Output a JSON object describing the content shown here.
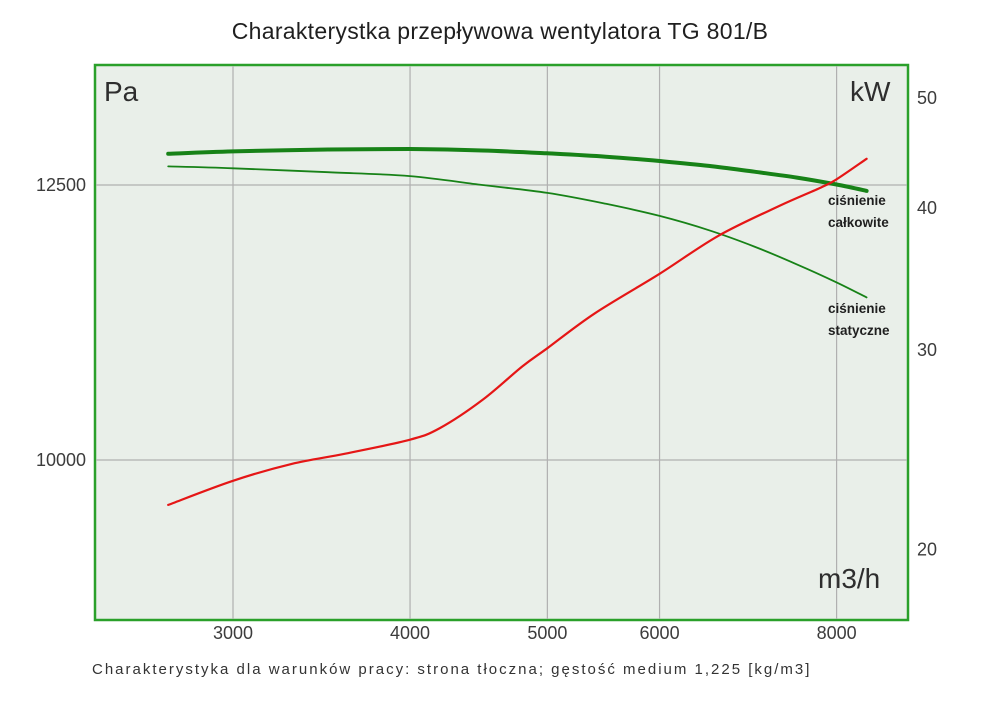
{
  "title": "Charakterystka przepływowa wentylatora TG 801/B",
  "caption": "Charakterystyka dla warunków pracy: strona tłoczna; gęstość medium 1,225 [kg/m3]",
  "axes": {
    "left_unit": "Pa",
    "right_unit": "kW",
    "x_unit": "m3/h",
    "left_ticks": [
      12500,
      10000
    ],
    "right_ticks": [
      50,
      40,
      30,
      20
    ],
    "x_ticks": [
      3000,
      4000,
      5000,
      6000,
      8000
    ]
  },
  "annotations": {
    "total_pressure": "ciśnienie\ncałkowite",
    "static_pressure": "ciśnienie\nstatyczne"
  },
  "colors": {
    "plot_bg": "#e9efe9",
    "plot_border": "#2aa02a",
    "grid": "#b0b0b0",
    "green_curve": "#178217",
    "red_curve": "#e51616"
  },
  "chart_data": {
    "type": "line",
    "title": "Charakterystka przepływowa wentylatora TG 801/B",
    "xlabel": "m3/h",
    "ylabel_left": "Pa",
    "ylabel_right": "kW",
    "x_scale": "log",
    "y_scale": "log",
    "xlim": [
      2400,
      9000
    ],
    "ylim_left": [
      8800,
      13800
    ],
    "ylim_right": [
      17.3,
      53.5
    ],
    "x_gridlines": [
      3000,
      4000,
      5000,
      6000,
      8000
    ],
    "y_gridlines_left": [
      12500,
      10000
    ],
    "legend_position": "inline-right",
    "series": [
      {
        "id": "cisnienie-calkowite",
        "name": "ciśnienie całkowite",
        "axis": "left",
        "unit": "Pa",
        "stroke_width": 4,
        "color": "#178217",
        "x": [
          2700,
          3000,
          3500,
          4000,
          4500,
          5000,
          5500,
          6000,
          6500,
          7000,
          7500,
          8000,
          8400
        ],
        "values": [
          12820,
          12845,
          12865,
          12870,
          12855,
          12825,
          12790,
          12745,
          12695,
          12635,
          12575,
          12505,
          12440
        ]
      },
      {
        "id": "cisnienie-statyczne",
        "name": "ciśnienie statyczne",
        "axis": "left",
        "unit": "Pa",
        "stroke_width": 1.8,
        "color": "#178217",
        "x": [
          2700,
          3000,
          3500,
          4000,
          4500,
          5000,
          5500,
          6000,
          6500,
          7000,
          7500,
          8000,
          8400
        ],
        "values": [
          12690,
          12670,
          12630,
          12590,
          12500,
          12420,
          12310,
          12190,
          12050,
          11890,
          11720,
          11550,
          11410
        ]
      },
      {
        "id": "power-kw",
        "name": "",
        "axis": "right",
        "unit": "kW",
        "stroke_width": 2.2,
        "color": "#e51616",
        "x": [
          2700,
          3000,
          3300,
          3600,
          4000,
          4200,
          4500,
          4800,
          5000,
          5400,
          6000,
          6600,
          7300,
          7800,
          8000,
          8400
        ],
        "values": [
          21.9,
          23.0,
          23.8,
          24.3,
          25.0,
          25.6,
          27.1,
          29.0,
          30.1,
          32.3,
          35.0,
          37.8,
          40.2,
          41.7,
          42.4,
          44.2
        ]
      }
    ]
  }
}
